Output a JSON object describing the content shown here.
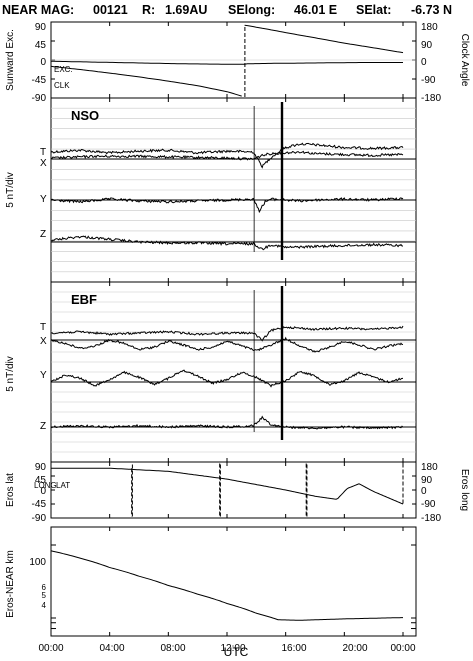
{
  "header": {
    "mission": "NEAR MAG:",
    "day": "00121",
    "range_label": "R:",
    "range": "1.69AU",
    "selong_label": "SElong:",
    "selong": "46.01 E",
    "selat_label": "SElat:",
    "selat": "-6.73 N"
  },
  "colors": {
    "ink": "#000000",
    "grid": "#c8c8c8",
    "background": "#ffffff"
  },
  "chart_data": [
    {
      "type": "line",
      "panel": "sunward",
      "xlabel": "UTC",
      "x_ticks": [
        "00:00",
        "04:00",
        "08:00",
        "12:00",
        "16:00",
        "20:00",
        "00:00"
      ],
      "xlim": [
        0,
        24
      ],
      "ylabel_left": "Sunward Exc.",
      "ylabel_right": "Clock Angle",
      "ylim_left": [
        -90,
        90
      ],
      "ylim_right": [
        -180,
        180
      ],
      "left_ticks": [
        "90",
        "45",
        "0",
        "-45",
        "-90"
      ],
      "right_ticks": [
        "180",
        "90",
        "0",
        "-90",
        "-180"
      ],
      "series": [
        {
          "name": "EXC.",
          "axis": "left",
          "x": [
            0,
            3,
            6,
            9,
            12,
            13.2,
            13.3,
            15,
            18,
            21,
            24
          ],
          "y": [
            -3,
            -5,
            -7,
            -9,
            -10,
            -10,
            -9,
            -8,
            -7,
            -6,
            -6
          ]
        },
        {
          "name": "CLK",
          "axis": "right",
          "style": "dashed",
          "x": [
            0,
            2,
            4,
            6,
            8,
            10,
            12,
            13.2,
            13.25,
            16,
            20,
            24
          ],
          "y": [
            -30,
            -45,
            -62,
            -80,
            -100,
            -122,
            -150,
            -175,
            165,
            130,
            80,
            35
          ]
        }
      ]
    },
    {
      "type": "line",
      "panel": "nso",
      "tag": "NSO",
      "ylabel_left": "5 nT/div",
      "xlim": [
        0,
        24
      ],
      "components": [
        "T",
        "X",
        "Y",
        "Z"
      ],
      "series": [
        {
          "name": "T",
          "x": [
            0,
            2,
            4,
            6,
            8,
            10,
            12,
            13.8,
            14.4,
            15,
            16,
            17,
            18,
            20,
            22,
            24
          ],
          "y": [
            0.0,
            0.2,
            -0.1,
            0.1,
            0.2,
            -0.1,
            0.1,
            0.0,
            -1.6,
            -0.6,
            0.5,
            0.9,
            0.8,
            0.5,
            0.4,
            0.5
          ]
        },
        {
          "name": "X",
          "x": [
            0,
            3,
            6,
            9,
            12,
            13.8,
            14.4,
            15,
            16,
            17,
            18,
            20,
            22,
            24
          ],
          "y": [
            0.1,
            0.3,
            0.3,
            0.2,
            0.1,
            0.0,
            0.4,
            0.6,
            0.7,
            0.8,
            0.6,
            0.5,
            0.4,
            0.5
          ]
        },
        {
          "name": "Y",
          "x": [
            0,
            2,
            4,
            6,
            8,
            10,
            12,
            13.8,
            14.2,
            14.6,
            15,
            16,
            17,
            18,
            20,
            22,
            24
          ],
          "y": [
            0.0,
            -0.2,
            0.1,
            -0.1,
            -0.2,
            -0.1,
            0.0,
            0.1,
            -1.2,
            -0.2,
            0.1,
            0.0,
            -0.1,
            0.0,
            0.1,
            0.0,
            0.2
          ]
        },
        {
          "name": "Z",
          "x": [
            0,
            2,
            4,
            6,
            8,
            10,
            12,
            13.8,
            14.4,
            15,
            16,
            18,
            20,
            22,
            24
          ],
          "y": [
            0.2,
            0.6,
            0.3,
            0.0,
            -0.1,
            -0.1,
            -0.2,
            -0.2,
            -0.8,
            -0.3,
            -0.6,
            -0.5,
            -0.4,
            -0.3,
            -0.4
          ]
        }
      ],
      "events": [
        13.85,
        15.75
      ]
    },
    {
      "type": "line",
      "panel": "ebf",
      "tag": "EBF",
      "ylabel_left": "5 nT/div",
      "xlim": [
        0,
        24
      ],
      "components": [
        "T",
        "X",
        "Y",
        "Z"
      ],
      "series": [
        {
          "name": "T",
          "x": [
            0,
            2,
            4,
            6,
            8,
            10,
            12,
            13.8,
            14.4,
            15,
            16,
            18,
            20,
            22,
            24
          ],
          "y": [
            0.0,
            0.1,
            -0.1,
            0.0,
            0.1,
            -0.1,
            0.0,
            0.0,
            -0.6,
            0.2,
            0.5,
            0.3,
            0.4,
            0.3,
            0.5
          ]
        },
        {
          "name": "X",
          "x": [
            0,
            1,
            2,
            3,
            4,
            5,
            6,
            7,
            8,
            9,
            10,
            11,
            12,
            13,
            14,
            15,
            16,
            17,
            18,
            19,
            20,
            21,
            22,
            23,
            24
          ],
          "y": [
            0.0,
            -0.3,
            -0.7,
            -0.5,
            0.0,
            -0.3,
            -0.8,
            -0.6,
            -0.1,
            -0.4,
            -0.8,
            -0.6,
            -0.1,
            -0.5,
            -0.9,
            -0.4,
            0.1,
            -0.5,
            -1.0,
            -0.6,
            -0.1,
            -0.4,
            -0.8,
            -0.5,
            -0.3
          ]
        },
        {
          "name": "Y",
          "x": [
            0,
            1,
            2,
            3,
            4,
            5,
            6,
            7,
            8,
            9,
            10,
            11,
            12,
            13,
            14,
            15,
            16,
            17,
            18,
            19,
            20,
            21,
            22,
            23,
            24
          ],
          "y": [
            0.0,
            0.6,
            0.3,
            -0.3,
            0.2,
            0.8,
            0.4,
            -0.2,
            0.3,
            1.0,
            0.5,
            -0.1,
            0.2,
            0.8,
            0.4,
            -0.3,
            0.1,
            0.9,
            0.5,
            -0.2,
            0.1,
            0.8,
            0.4,
            0.0,
            0.3
          ]
        },
        {
          "name": "Z",
          "x": [
            0,
            2,
            4,
            6,
            8,
            10,
            12,
            13.8,
            14.4,
            15,
            16,
            18,
            20,
            22,
            24
          ],
          "y": [
            0.0,
            0.1,
            0.0,
            0.1,
            0.0,
            0.1,
            0.0,
            0.1,
            0.8,
            0.2,
            0.0,
            -0.1,
            0.0,
            -0.1,
            0.0
          ]
        }
      ],
      "events": [
        13.85,
        15.75
      ]
    },
    {
      "type": "line",
      "panel": "eros_position",
      "ylabel_left": "Eros lat",
      "ylabel_right": "Eros long",
      "ylim_left": [
        -90,
        90
      ],
      "ylim_right": [
        -180,
        180
      ],
      "left_ticks": [
        "90",
        "45",
        "0",
        "-45",
        "-90"
      ],
      "right_ticks": [
        "180",
        "90",
        "0",
        "-90",
        "-180"
      ],
      "xlim": [
        0,
        24
      ],
      "annotations": [
        "LONG",
        "LAT"
      ],
      "series": [
        {
          "name": "LAT",
          "axis": "left",
          "x": [
            0,
            4,
            8,
            12,
            16,
            18,
            19.5,
            20.2,
            21,
            22,
            24
          ],
          "y": [
            70,
            70,
            60,
            35,
            0,
            -20,
            -30,
            5,
            20,
            -5,
            -45
          ]
        },
        {
          "name": "LONG",
          "axis": "right",
          "style": "dashed",
          "x": [
            0,
            5.5,
            5.55,
            11.5,
            11.55,
            17.4,
            17.45,
            24
          ],
          "y": [
            140,
            -170,
            170,
            -170,
            170,
            -170,
            170,
            -90
          ]
        }
      ]
    },
    {
      "type": "line",
      "panel": "range",
      "ylabel_left": "Eros-NEAR km",
      "yscale": "log",
      "left_ticks": [
        "100",
        "6",
        "5",
        "4"
      ],
      "xlim": [
        0,
        24
      ],
      "series": [
        {
          "name": "range",
          "x": [
            0,
            2,
            4,
            6,
            8,
            10,
            12,
            14,
            15.5,
            17,
            20,
            24
          ],
          "y": [
            80,
            60,
            42,
            30,
            21,
            15,
            10.5,
            7.2,
            5.6,
            5.5,
            5.8,
            6.1
          ]
        }
      ]
    }
  ]
}
